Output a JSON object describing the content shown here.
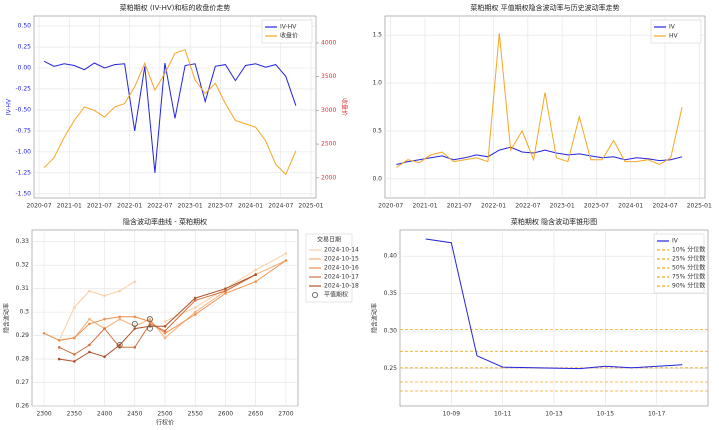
{
  "chart_data": [
    {
      "type": "line",
      "title": "菜粕期权 (IV-HV)和标的收盘价走势",
      "ylabel": "IV-HV",
      "y2label": "收盘价",
      "grid": true,
      "legend": "upper right",
      "x": [
        "2020-08",
        "2020-10",
        "2020-12",
        "2021-02",
        "2021-04",
        "2021-06",
        "2021-08",
        "2021-10",
        "2021-12",
        "2022-02",
        "2022-04",
        "2022-06",
        "2022-08",
        "2022-10",
        "2022-12",
        "2023-02",
        "2023-04",
        "2023-06",
        "2023-08",
        "2023-10",
        "2023-12",
        "2024-02",
        "2024-04",
        "2024-06",
        "2024-08",
        "2024-10"
      ],
      "xlim": [
        "2020-06",
        "2025-02"
      ],
      "xticks": [
        "2020-07",
        "2021-01",
        "2021-07",
        "2022-01",
        "2022-07",
        "2023-01",
        "2023-07",
        "2024-01",
        "2024-07",
        "2025-01"
      ],
      "ylim": [
        -1.55,
        0.62
      ],
      "yticks": [
        {
          "value": 0.5,
          "label": "0.50"
        },
        0.25,
        {
          "value": 0,
          "label": "0.00"
        },
        -0.25,
        {
          "value": -0.5,
          "label": "-0.50"
        },
        -0.75,
        {
          "value": -1,
          "label": "-1.00"
        },
        -1.25,
        {
          "value": -1.5,
          "label": "-1.50"
        }
      ],
      "y2lim": [
        1700,
        4400
      ],
      "y2ticks": [
        2000,
        2500,
        3000,
        3500,
        4000
      ],
      "series": [
        {
          "name": "IV-HV",
          "color": "#2323e0",
          "values": [
            0.08,
            0.02,
            0.05,
            0.03,
            -0.02,
            0.06,
            0.0,
            0.04,
            0.05,
            -0.75,
            0.02,
            -1.25,
            0.06,
            -0.6,
            0.03,
            0.05,
            -0.4,
            0.02,
            0.04,
            -0.15,
            0.03,
            0.05,
            0.01,
            0.04,
            -0.1,
            -0.45
          ]
        },
        {
          "name": "收盘价",
          "color": "#f5a623",
          "axis": "y2",
          "values": [
            2150,
            2300,
            2600,
            2850,
            3050,
            3000,
            2900,
            3050,
            3100,
            3350,
            3700,
            3300,
            3550,
            3850,
            3900,
            3450,
            3250,
            3400,
            3100,
            2850,
            2800,
            2750,
            2550,
            2200,
            2050,
            2400
          ]
        }
      ]
    },
    {
      "type": "line",
      "title": "菜粕期权 平值期权隐含波动率与历史波动率走势",
      "grid": true,
      "legend": "upper right",
      "x": [
        "2020-08",
        "2020-10",
        "2020-12",
        "2021-02",
        "2021-04",
        "2021-06",
        "2021-08",
        "2021-10",
        "2021-12",
        "2022-02",
        "2022-04",
        "2022-06",
        "2022-08",
        "2022-10",
        "2022-12",
        "2023-02",
        "2023-04",
        "2023-06",
        "2023-08",
        "2023-10",
        "2023-12",
        "2024-02",
        "2024-04",
        "2024-06",
        "2024-08",
        "2024-10"
      ],
      "xlim": [
        "2020-06",
        "2025-02"
      ],
      "xticks": [
        "2020-07",
        "2021-01",
        "2021-07",
        "2022-01",
        "2022-07",
        "2023-01",
        "2023-07",
        "2024-01",
        "2024-07",
        "2025-01"
      ],
      "ylim": [
        -0.2,
        1.7
      ],
      "yticks": [
        {
          "value": 0,
          "label": "0.0"
        },
        0.5,
        {
          "value": 1,
          "label": "1.0"
        },
        1.5
      ],
      "series": [
        {
          "name": "IV",
          "color": "#2323e0",
          "values": [
            0.15,
            0.18,
            0.2,
            0.22,
            0.24,
            0.2,
            0.22,
            0.25,
            0.23,
            0.3,
            0.33,
            0.28,
            0.27,
            0.3,
            0.27,
            0.25,
            0.26,
            0.24,
            0.22,
            0.23,
            0.2,
            0.22,
            0.21,
            0.19,
            0.2,
            0.23
          ]
        },
        {
          "name": "HV",
          "color": "#f5a623",
          "values": [
            0.12,
            0.2,
            0.17,
            0.25,
            0.28,
            0.18,
            0.2,
            0.22,
            0.18,
            1.52,
            0.3,
            0.5,
            0.2,
            0.9,
            0.22,
            0.18,
            0.65,
            0.2,
            0.2,
            0.4,
            0.18,
            0.18,
            0.2,
            0.15,
            0.22,
            0.75
          ]
        }
      ]
    },
    {
      "type": "line",
      "title": "隐含波动率曲线 - 菜粕期权",
      "xlabel": "行权价",
      "ylabel": "隐含波动率",
      "grid": true,
      "legend": "outside right",
      "legend_title": "交易日期",
      "x": [
        2300,
        2325,
        2350,
        2375,
        2400,
        2425,
        2450,
        2475,
        2500,
        2550,
        2600,
        2650,
        2700
      ],
      "xlim": [
        2280,
        2720
      ],
      "xticks": [
        2300,
        2350,
        2400,
        2450,
        2500,
        2550,
        2600,
        2650,
        2700
      ],
      "ylim": [
        0.26,
        0.335
      ],
      "yticks": [
        0.26,
        0.27,
        0.28,
        0.29,
        0.3,
        0.31,
        0.32,
        0.33
      ],
      "series": [
        {
          "name": "2024-10-14",
          "color": "#f9cfa5",
          "values": [
            null,
            0.288,
            0.302,
            0.309,
            0.307,
            0.309,
            0.313,
            null,
            0.296,
            0.302,
            0.31,
            0.318,
            0.325
          ]
        },
        {
          "name": "2024-10-15",
          "color": "#f5b07a",
          "values": [
            null,
            0.288,
            0.289,
            0.297,
            0.293,
            0.297,
            0.294,
            0.297,
            0.289,
            0.3,
            0.309,
            0.316,
            0.322
          ]
        },
        {
          "name": "2024-10-16",
          "color": "#ec8f4e",
          "values": [
            0.291,
            0.288,
            0.289,
            0.295,
            0.297,
            0.298,
            0.298,
            0.296,
            0.291,
            0.299,
            0.308,
            0.313,
            0.322
          ]
        },
        {
          "name": "2024-10-17",
          "color": "#d2703c",
          "values": [
            null,
            0.285,
            0.282,
            0.286,
            0.293,
            0.285,
            0.285,
            0.295,
            0.292,
            0.305,
            0.309,
            0.316,
            null
          ]
        },
        {
          "name": "2024-10-18",
          "color": "#b0502a",
          "values": [
            null,
            0.28,
            0.279,
            0.283,
            0.281,
            0.286,
            0.293,
            0.294,
            0.294,
            0.306,
            0.31,
            0.316,
            null
          ]
        },
        {
          "name": "平值期权",
          "color": "#555555",
          "marker": "circle",
          "x": [
            2425,
            2450,
            2475,
            2475
          ],
          "values": [
            0.286,
            0.295,
            0.293,
            0.297
          ]
        }
      ]
    },
    {
      "type": "line",
      "title": "菜粕期权 隐含波动率锥形图",
      "ylabel": "隐含波动率",
      "grid": true,
      "legend": "upper right",
      "x": [
        "10-08",
        "10-09",
        "10-10",
        "10-11",
        "10-14",
        "10-15",
        "10-16",
        "10-18"
      ],
      "xlim": [
        "10-07",
        "10-19"
      ],
      "xticks": [
        "10-09",
        "10-11",
        "10-13",
        "10-15",
        "10-17"
      ],
      "ylim": [
        0.2,
        0.435
      ],
      "yticks": [
        0.25,
        {
          "value": 0.3,
          "label": "0.30"
        },
        0.35,
        {
          "value": 0.4,
          "label": "0.40"
        }
      ],
      "series": [
        {
          "name": "IV",
          "color": "#2323e0",
          "values": [
            0.423,
            0.418,
            0.267,
            0.252,
            0.25,
            0.253,
            0.251,
            0.255
          ]
        }
      ],
      "reference_lines": [
        {
          "name": "10% 分位数",
          "color": "#f5a623",
          "value": 0.22
        },
        {
          "name": "25% 分位数",
          "color": "#f5a623",
          "value": 0.232
        },
        {
          "name": "50% 分位数",
          "color": "#f5a623",
          "value": 0.251
        },
        {
          "name": "75% 分位数",
          "color": "#f5a623",
          "value": 0.273
        },
        {
          "name": "90% 分位数",
          "color": "#f5a623",
          "value": 0.302
        }
      ]
    }
  ]
}
